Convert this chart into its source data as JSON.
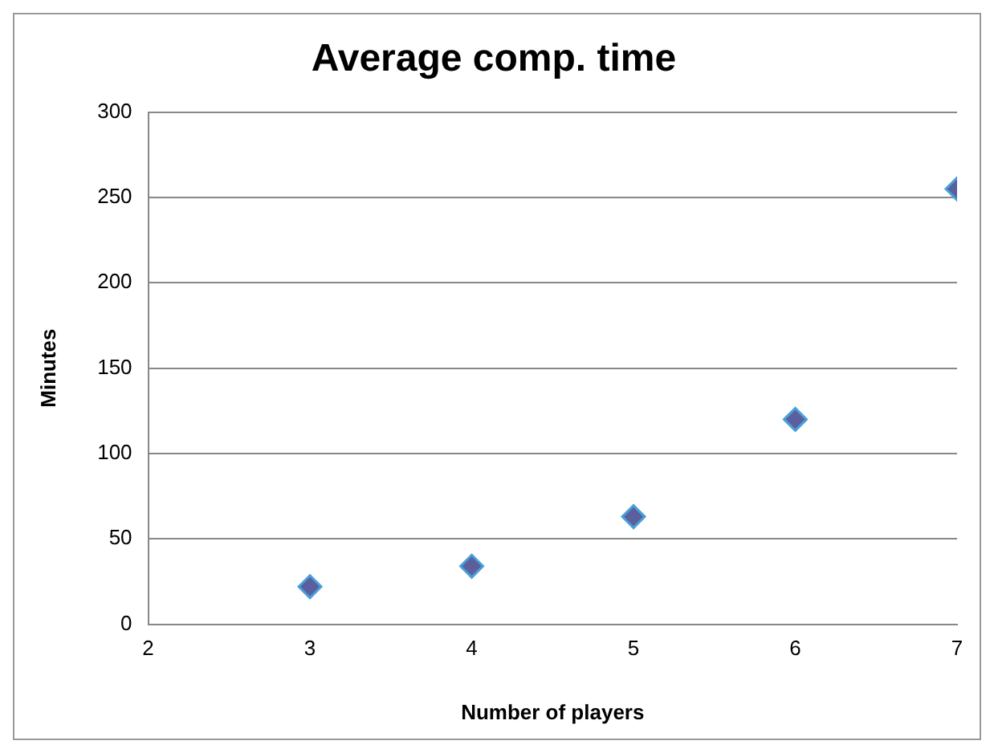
{
  "chart_data": {
    "type": "scatter",
    "title": "Average comp. time",
    "xlabel": "Number of players",
    "ylabel": "Minutes",
    "x": [
      3,
      4,
      5,
      6,
      7
    ],
    "series": [
      {
        "color": "#5b5f9e",
        "values": [
          22,
          34,
          63,
          120,
          255
        ]
      }
    ],
    "xlim": [
      2,
      7
    ],
    "xticks": [
      2,
      3,
      4,
      5,
      6,
      7
    ],
    "ylim": [
      0,
      300
    ],
    "yticks": [
      0,
      50,
      100,
      150,
      200,
      250,
      300
    ],
    "grid": "y",
    "legend": false,
    "marker": "diamond"
  }
}
